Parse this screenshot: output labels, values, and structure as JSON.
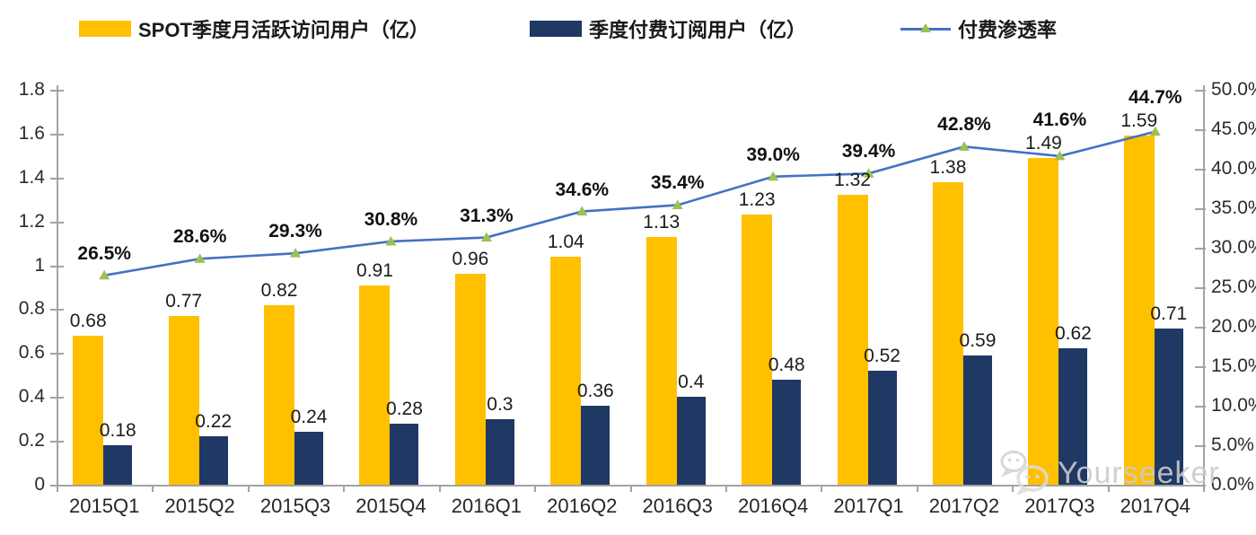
{
  "chart_data": {
    "type": "bar",
    "title": "",
    "legend_position": "top",
    "grid": false,
    "categories": [
      "2015Q1",
      "2015Q2",
      "2015Q3",
      "2015Q4",
      "2016Q1",
      "2016Q2",
      "2016Q3",
      "2016Q4",
      "2017Q1",
      "2017Q2",
      "2017Q3",
      "2017Q4"
    ],
    "series": [
      {
        "name": "SPOT季度月活跃访问用户（亿）",
        "type": "bar",
        "axis": "left",
        "color": "#FFC000",
        "values": [
          0.68,
          0.77,
          0.82,
          0.91,
          0.96,
          1.04,
          1.13,
          1.23,
          1.32,
          1.38,
          1.49,
          1.59
        ],
        "labels": [
          "0.68",
          "0.77",
          "0.82",
          "0.91",
          "0.96",
          "1.04",
          "1.13",
          "1.23",
          "1.32",
          "1.38",
          "1.49",
          "1.59"
        ]
      },
      {
        "name": "季度付费订阅用户（亿）",
        "type": "bar",
        "axis": "left",
        "color": "#1F3864",
        "values": [
          0.18,
          0.22,
          0.24,
          0.28,
          0.3,
          0.36,
          0.4,
          0.48,
          0.52,
          0.59,
          0.62,
          0.71
        ],
        "labels": [
          "0.18",
          "0.22",
          "0.24",
          "0.28",
          "0.3",
          "0.36",
          "0.4",
          "0.48",
          "0.52",
          "0.59",
          "0.62",
          "0.71"
        ]
      },
      {
        "name": "付费渗透率",
        "type": "line",
        "axis": "right",
        "color": "#4472C4",
        "marker": "triangle",
        "marker_color": "#9CC153",
        "values": [
          26.5,
          28.6,
          29.3,
          30.8,
          31.3,
          34.6,
          35.4,
          39.0,
          39.4,
          42.8,
          41.6,
          44.7
        ],
        "labels": [
          "26.5%",
          "28.6%",
          "29.3%",
          "30.8%",
          "31.3%",
          "34.6%",
          "35.4%",
          "39.0%",
          "39.4%",
          "42.8%",
          "41.6%",
          "44.7%"
        ]
      }
    ],
    "left_axis": {
      "min": 0,
      "max": 1.8,
      "tick_step": 0.2,
      "tick_labels": [
        "1.8",
        "1.6",
        "1.4",
        "1.2",
        "1",
        "0.8",
        "0.6",
        "0.4",
        "0.2",
        "0"
      ]
    },
    "right_axis": {
      "min": 0,
      "max": 50,
      "tick_step": 5,
      "tick_labels": [
        "50.0%",
        "45.0%",
        "40.0%",
        "35.0%",
        "30.0%",
        "25.0%",
        "20.0%",
        "15.0%",
        "10.0%",
        "5.0%",
        "0.0%"
      ]
    }
  },
  "watermark": {
    "text": "Yourseeker",
    "icon": "wechat-icon"
  },
  "colors": {
    "background": "#FFFFFF",
    "axis": "#A3A3A3",
    "text": "#1C1C1C"
  }
}
